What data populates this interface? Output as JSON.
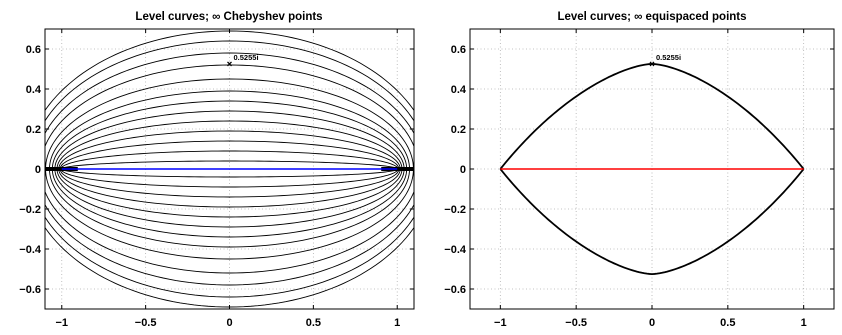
{
  "chart_data": [
    {
      "type": "line",
      "title": "Level curves; ∞ Chebyshev points",
      "xlabel": "",
      "ylabel": "",
      "xlim": [
        -1.1,
        1.1
      ],
      "ylim": [
        -0.7,
        0.7
      ],
      "x_ticks": [
        "−1",
        "−0.5",
        "0",
        "0.5",
        "1"
      ],
      "x_tick_values": [
        -1,
        -0.5,
        0,
        0.5,
        1
      ],
      "y_ticks": [
        "0.6",
        "0.4",
        "0.2",
        "0",
        "−0.2",
        "−0.4",
        "−0.6"
      ],
      "y_tick_values": [
        0.6,
        0.4,
        0.2,
        0,
        -0.2,
        -0.4,
        -0.6
      ],
      "grid": true,
      "level_curve_semi_minor_axes": [
        0.04,
        0.09,
        0.14,
        0.19,
        0.24,
        0.29,
        0.34,
        0.39,
        0.45,
        0.52,
        0.58,
        0.64,
        0.69
      ],
      "interval_segment": {
        "x": [
          -1,
          1
        ],
        "y": 0,
        "color": "#0000ff"
      },
      "marker": {
        "x": 0,
        "y": 0.5255,
        "label": "0.5255i"
      },
      "colors": {
        "curves": "#000000",
        "segment": "#0000ff"
      }
    },
    {
      "type": "line",
      "title": "Level curves; ∞ equispaced points",
      "xlabel": "",
      "ylabel": "",
      "xlim": [
        -1.2,
        1.2
      ],
      "ylim": [
        -0.7,
        0.7
      ],
      "x_ticks": [
        "−1",
        "−0.5",
        "0",
        "0.5",
        "1"
      ],
      "x_tick_values": [
        -1,
        -0.5,
        0,
        0.5,
        1
      ],
      "y_ticks": [
        "0.6",
        "0.4",
        "0.2",
        "0",
        "−0.2",
        "−0.4",
        "−0.6"
      ],
      "y_tick_values": [
        0.6,
        0.4,
        0.2,
        0,
        -0.2,
        -0.4,
        -0.6
      ],
      "grid": true,
      "lens_curve": {
        "x_range": [
          -1,
          1
        ],
        "peak_y": 0.5255
      },
      "interval_segment": {
        "x": [
          -1,
          1
        ],
        "y": 0,
        "color": "#ff0000"
      },
      "marker": {
        "x": 0,
        "y": 0.5255,
        "label": "0.5255i"
      },
      "colors": {
        "curves": "#000000",
        "segment": "#ff0000"
      }
    }
  ]
}
